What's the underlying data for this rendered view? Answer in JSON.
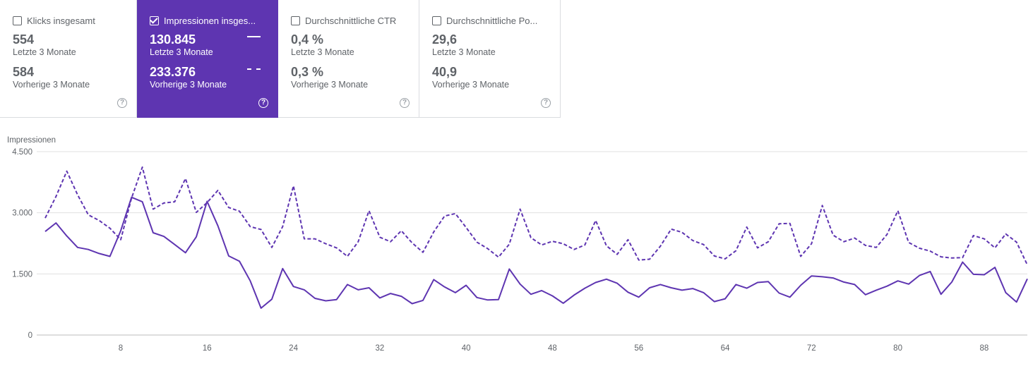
{
  "cards": [
    {
      "title": "Klicks insgesamt",
      "checked": false,
      "value1": "554",
      "label1": "Letzte 3 Monate",
      "value2": "584",
      "label2": "Vorherige 3 Monate",
      "help": "?"
    },
    {
      "title": "Impressionen insges...",
      "checked": true,
      "value1": "130.845",
      "label1": "Letzte 3 Monate",
      "value2": "233.376",
      "label2": "Vorherige 3 Monate",
      "help": "?"
    },
    {
      "title": "Durchschnittliche CTR",
      "checked": false,
      "value1": "0,4 %",
      "label1": "Letzte 3 Monate",
      "value2": "0,3 %",
      "label2": "Vorherige 3 Monate",
      "help": "?"
    },
    {
      "title": "Durchschnittliche Po...",
      "checked": false,
      "value1": "29,6",
      "label1": "Letzte 3 Monate",
      "value2": "40,9",
      "label2": "Vorherige 3 Monate",
      "help": "?"
    }
  ],
  "colors": {
    "accent": "#5e35b1",
    "line": "#5e35b1",
    "grid": "#e0e0e0"
  },
  "chart_data": {
    "type": "line",
    "ylabel": "Impressionen",
    "ylim": [
      0,
      4500
    ],
    "yticks": [
      "4.500",
      "3.000",
      "1.500",
      "0"
    ],
    "ytick_values": [
      4500,
      3000,
      1500,
      0
    ],
    "xticks": [
      8,
      16,
      24,
      32,
      40,
      48,
      56,
      64,
      72,
      80,
      88
    ],
    "x": [
      1,
      2,
      3,
      4,
      5,
      6,
      7,
      8,
      9,
      10,
      11,
      12,
      13,
      14,
      15,
      16,
      17,
      18,
      19,
      20,
      21,
      22,
      23,
      24,
      25,
      26,
      27,
      28,
      29,
      30,
      31,
      32,
      33,
      34,
      35,
      36,
      37,
      38,
      39,
      40,
      41,
      42,
      43,
      44,
      45,
      46,
      47,
      48,
      49,
      50,
      51,
      52,
      53,
      54,
      55,
      56,
      57,
      58,
      59,
      60,
      61,
      62,
      63,
      64,
      65,
      66,
      67,
      68,
      69,
      70,
      71,
      72,
      73,
      74,
      75,
      76,
      77,
      78,
      79,
      80,
      81,
      82,
      83,
      84,
      85,
      86,
      87,
      88,
      89,
      90,
      91,
      92
    ],
    "grid": true,
    "series": [
      {
        "style": "solid",
        "values": [
          2540,
          2750,
          2430,
          2150,
          2100,
          2000,
          1930,
          2560,
          3380,
          3270,
          2510,
          2420,
          2220,
          2020,
          2410,
          3280,
          2680,
          1940,
          1810,
          1330,
          660,
          880,
          1630,
          1190,
          1110,
          900,
          840,
          870,
          1240,
          1110,
          1160,
          910,
          1020,
          950,
          770,
          850,
          1360,
          1180,
          1040,
          1220,
          920,
          860,
          870,
          1620,
          1250,
          1000,
          1090,
          960,
          780,
          980,
          1150,
          1290,
          1370,
          1270,
          1050,
          930,
          1160,
          1240,
          1160,
          1100,
          1140,
          1040,
          820,
          890,
          1240,
          1150,
          1290,
          1310,
          1030,
          930,
          1220,
          1450,
          1430,
          1400,
          1300,
          1240,
          990,
          1100,
          1200,
          1330,
          1250,
          1460,
          1560,
          1000,
          1300,
          1790,
          1490,
          1480,
          1660,
          1040,
          810,
          1380
        ]
      },
      {
        "style": "dashed",
        "values": [
          2870,
          3400,
          4020,
          3440,
          2950,
          2810,
          2620,
          2340,
          3360,
          4120,
          3090,
          3240,
          3270,
          3840,
          3010,
          3250,
          3550,
          3130,
          3040,
          2660,
          2590,
          2150,
          2660,
          3660,
          2360,
          2360,
          2240,
          2140,
          1930,
          2290,
          3050,
          2400,
          2290,
          2560,
          2260,
          2030,
          2530,
          2920,
          2980,
          2640,
          2280,
          2120,
          1910,
          2230,
          3090,
          2390,
          2210,
          2300,
          2240,
          2100,
          2210,
          2810,
          2190,
          1980,
          2340,
          1840,
          1860,
          2180,
          2600,
          2520,
          2320,
          2220,
          1940,
          1870,
          2070,
          2650,
          2140,
          2290,
          2730,
          2740,
          1930,
          2240,
          3180,
          2450,
          2290,
          2380,
          2200,
          2150,
          2470,
          3050,
          2270,
          2130,
          2060,
          1920,
          1890,
          1900,
          2440,
          2360,
          2140,
          2480,
          2280,
          1720
        ]
      }
    ]
  }
}
